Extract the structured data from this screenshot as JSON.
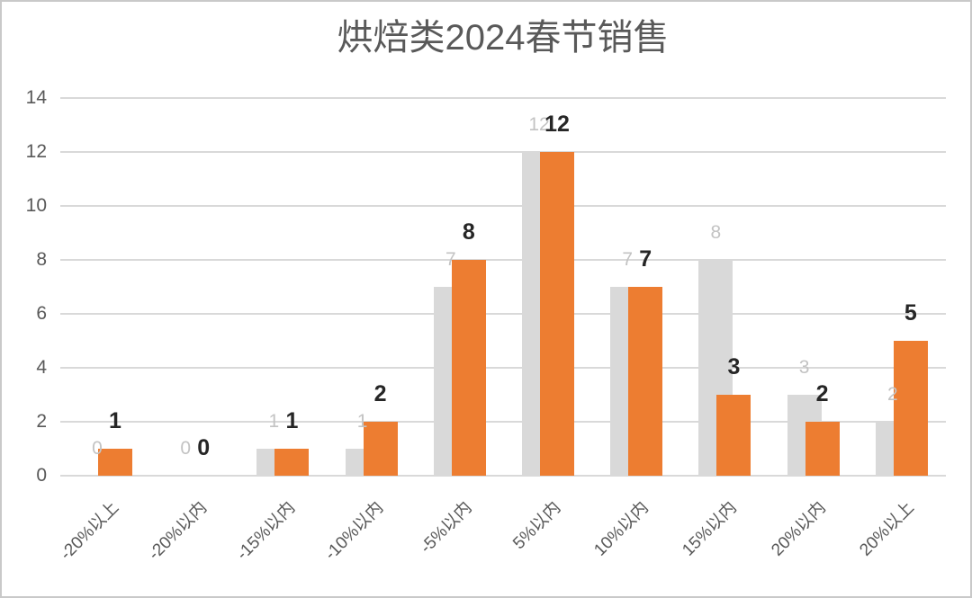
{
  "chart_data": {
    "type": "bar",
    "title": "烘焙类2024春节销售",
    "categories": [
      "-20%以上",
      "-20%以内",
      "-15%以内",
      "-10%以内",
      "-5%以内",
      "5%以内",
      "10%以内",
      "15%以内",
      "20%以内",
      "20%以上"
    ],
    "series": [
      {
        "name": "gray-series",
        "values": [
          0,
          0,
          1,
          1,
          7,
          12,
          7,
          8,
          3,
          2
        ],
        "color": "#D9D9D9",
        "label_color": "#C3C3C3",
        "label_bold": false
      },
      {
        "name": "orange-series",
        "values": [
          1,
          0,
          1,
          2,
          8,
          12,
          7,
          3,
          2,
          5
        ],
        "color": "#ED7D31",
        "label_color": "#262626",
        "label_bold": true
      }
    ],
    "xlabel": "",
    "ylabel": "",
    "ylim": [
      0,
      14
    ],
    "yticks": [
      0,
      2,
      4,
      6,
      8,
      10,
      12,
      14
    ],
    "grid": true,
    "legend_position": "none",
    "data_labels": true,
    "x_labels_rotation_deg": -45
  },
  "styles": {
    "title_color": "#595959",
    "axis_label_color": "#595959",
    "gridline_color": "#D9D9D9",
    "background": "#FFFFFF",
    "border_color": "#C9C9C9"
  }
}
